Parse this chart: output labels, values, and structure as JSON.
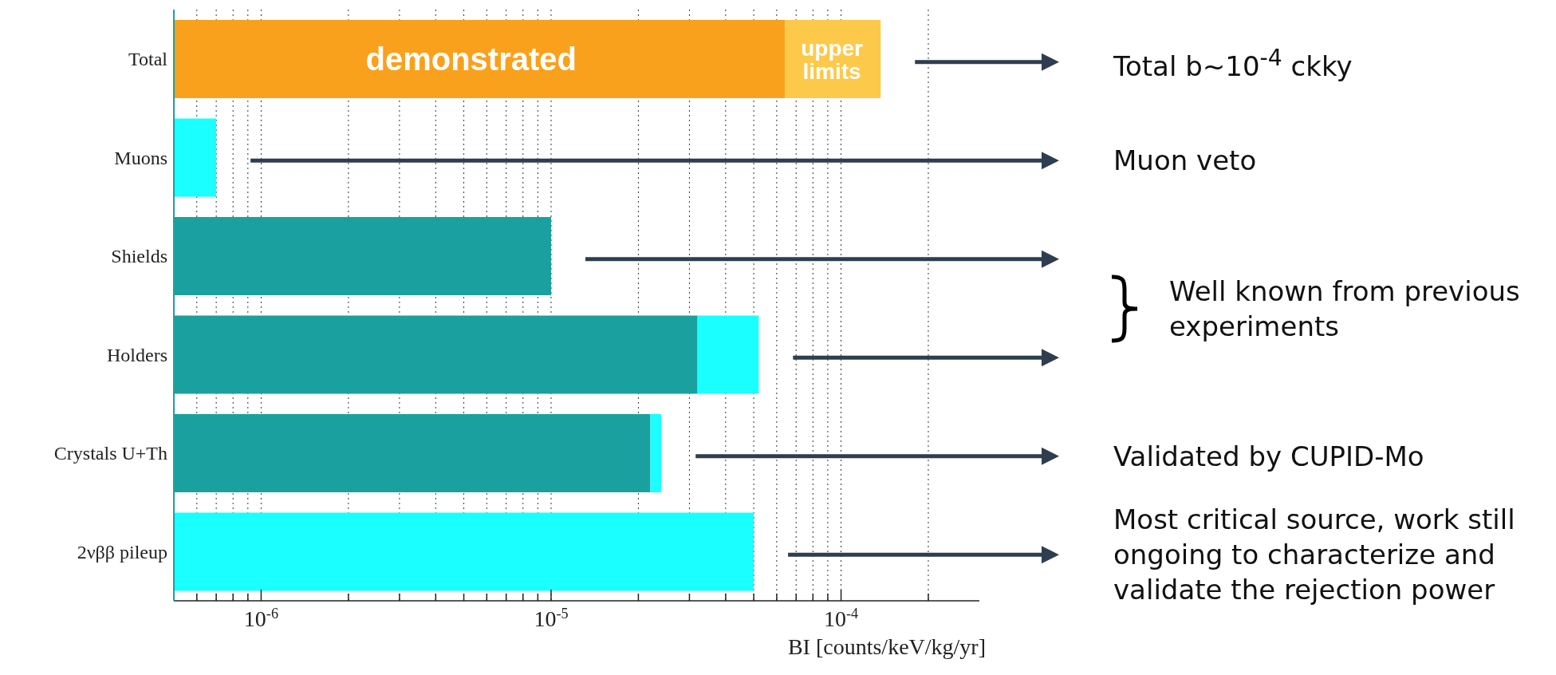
{
  "chart_data": {
    "type": "bar",
    "orientation": "horizontal",
    "stacked": true,
    "log": "x",
    "grid": "x",
    "legend": false,
    "categories": [
      "Total",
      "Muons",
      "Shields",
      "Holders",
      "Crystals U+Th",
      "2νββ pileup"
    ],
    "series": [
      {
        "colors": [
          "#f9a11d",
          "#1affff",
          "#1aa19f",
          "#1aa19f",
          "#1aa19f",
          "#1affff"
        ],
        "values": [
          6.4e-05,
          7e-07,
          1e-05,
          3.2e-05,
          2.2e-05,
          5e-05
        ]
      },
      {
        "colors": [
          "#fdc94a",
          null,
          null,
          "#1affff",
          "#1affff",
          null
        ],
        "values": [
          7.3e-05,
          null,
          null,
          2e-05,
          2e-06,
          null
        ]
      }
    ],
    "xlim": [
      5e-07,
      0.0003
    ],
    "xticks": [
      {
        "value": 6e-07,
        "label": null
      },
      {
        "value": 7e-07,
        "label": null
      },
      {
        "value": 8e-07,
        "label": null
      },
      {
        "value": 9e-07,
        "label": null
      },
      {
        "value": 1e-06,
        "label": "10$^{-6}$"
      },
      {
        "value": 2e-06,
        "label": null
      },
      {
        "value": 3e-06,
        "label": null
      },
      {
        "value": 4e-06,
        "label": null
      },
      {
        "value": 5e-06,
        "label": null
      },
      {
        "value": 6e-06,
        "label": null
      },
      {
        "value": 7e-06,
        "label": null
      },
      {
        "value": 8e-06,
        "label": null
      },
      {
        "value": 9e-06,
        "label": null
      },
      {
        "value": 1e-05,
        "label": "10$^{-5}$"
      },
      {
        "value": 2e-05,
        "label": null
      },
      {
        "value": 3e-05,
        "label": null
      },
      {
        "value": 4e-05,
        "label": null
      },
      {
        "value": 5e-05,
        "label": null
      },
      {
        "value": 6e-05,
        "label": null
      },
      {
        "value": 7e-05,
        "label": null
      },
      {
        "value": 8e-05,
        "label": null
      },
      {
        "value": 9e-05,
        "label": null
      },
      {
        "value": 0.0001,
        "label": "10$^{-4}$"
      },
      {
        "value": 0.0002,
        "label": null
      }
    ],
    "xlabel": "BI [counts/keV/kg/yr]",
    "annotations": [
      {
        "text": "demonstrated",
        "x": 5.3e-06,
        "y": "Total"
      },
      {
        "text": "upper limits",
        "x": 9.3e-05,
        "y": "Total"
      },
      "Total b~10$^{-4}$ ckky",
      "Muon veto",
      "Well known from previous experiments",
      "Validated by CUPID-Mo",
      "Most critical source, work still ongoing to characterize and validate the rejection power"
    ]
  }
}
